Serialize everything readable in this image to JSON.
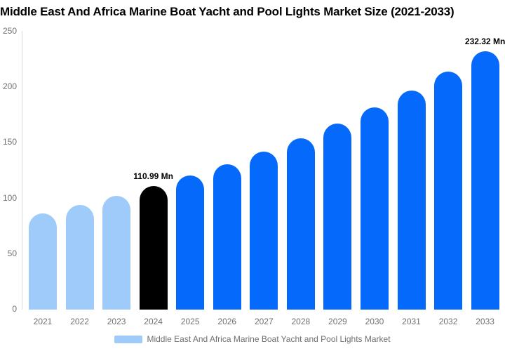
{
  "chart_data": {
    "type": "bar",
    "title": "Middle East And Africa Marine Boat Yacht and Pool Lights Market Size (2021-2033)",
    "unit": "Mn",
    "categories": [
      "2021",
      "2022",
      "2023",
      "2024",
      "2025",
      "2026",
      "2027",
      "2028",
      "2029",
      "2030",
      "2031",
      "2032",
      "2033"
    ],
    "values": [
      86.8,
      94.2,
      102.2,
      110.99,
      120.5,
      130.8,
      142.0,
      154.1,
      167.3,
      181.6,
      197.2,
      214.0,
      232.32
    ],
    "bar_colors": [
      "#9FCBFA",
      "#9FCBFA",
      "#9FCBFA",
      "#000000",
      "#0569FB",
      "#0569FB",
      "#0569FB",
      "#0569FB",
      "#0569FB",
      "#0569FB",
      "#0569FB",
      "#0569FB",
      "#0569FB"
    ],
    "y_ticks": [
      0,
      50,
      100,
      150,
      200,
      250
    ],
    "ylim": [
      0,
      250
    ],
    "grid": false,
    "annotations": [
      {
        "category": "2024",
        "text": "110.99 Mn"
      },
      {
        "category": "2033",
        "text": "232.32 Mn"
      }
    ],
    "legend_position": "bottom",
    "legend": [
      "Middle East And Africa Marine Boat Yacht and Pool Lights Market"
    ],
    "colors": {
      "historical_bar": "#9FCBFA",
      "base_year_bar": "#000000",
      "forecast_bar": "#0569FB",
      "axis_text": "#707070",
      "axis_line": "#D9D9D9",
      "title_text": "#000000",
      "annotation_text": "#000000",
      "background": "#FFFFFF"
    }
  }
}
